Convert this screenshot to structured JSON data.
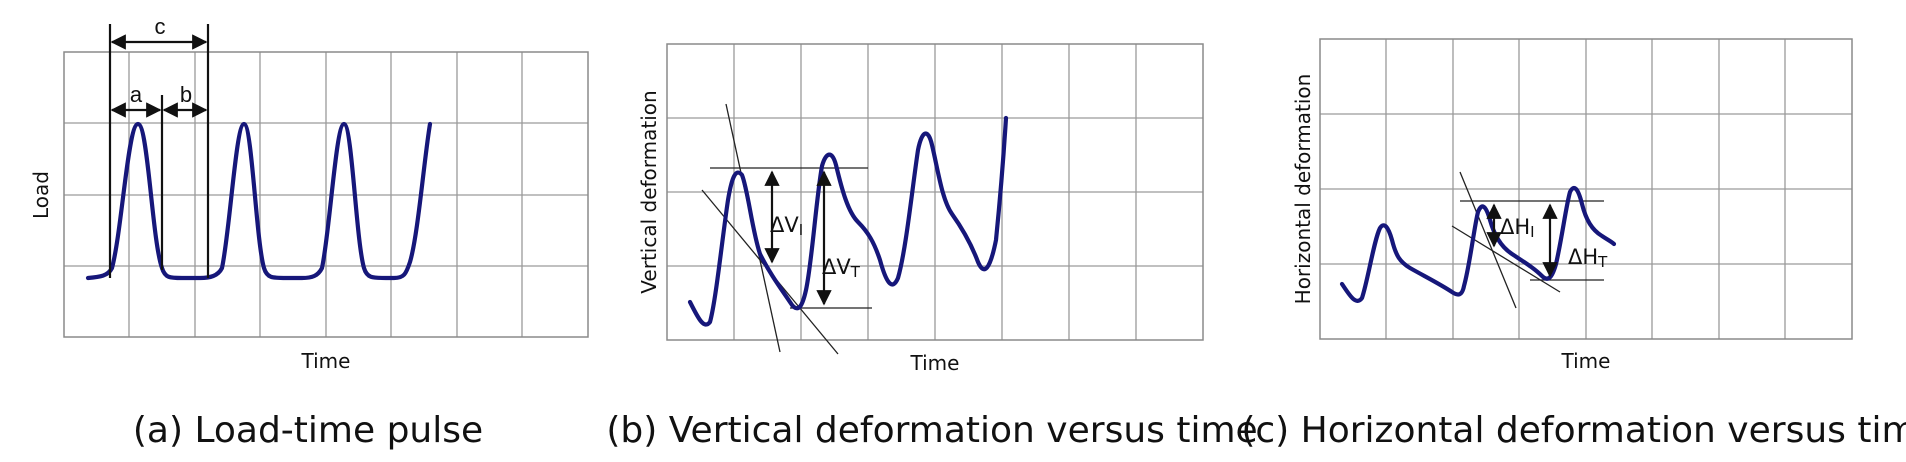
{
  "panels": [
    {
      "id": "a",
      "caption": "(a) Load-time pulse",
      "xlabel": "Time",
      "ylabel": "Load",
      "annotations": {
        "a": "a",
        "b": "b",
        "c": "c"
      }
    },
    {
      "id": "b",
      "caption": "(b) Vertical deformation versus time",
      "xlabel": "Time",
      "ylabel": "Vertical deformation",
      "annotations": {
        "d1": "ΔV",
        "d1_sub": "I",
        "d2": "ΔV",
        "d2_sub": "T"
      }
    },
    {
      "id": "c",
      "caption": "(c) Horizontal deformation versus time",
      "xlabel": "Time",
      "ylabel": "Horizontal deformation",
      "annotations": {
        "d1": "ΔH",
        "d1_sub": "I",
        "d2": "ΔH",
        "d2_sub": "T"
      }
    }
  ],
  "colors": {
    "curve": "#16177a",
    "grid": "#9a9a9a"
  }
}
